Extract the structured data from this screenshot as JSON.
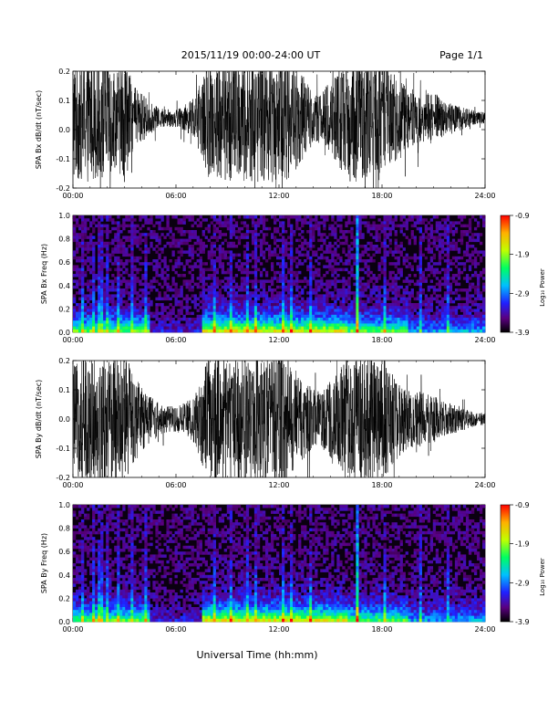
{
  "header": {
    "date_range": "2015/11/19  00:00-24:00 UT",
    "page": "Page 1/1"
  },
  "footer": {
    "xlabel": "Universal Time (hh:mm)"
  },
  "chart_data": [
    {
      "type": "line",
      "ylabel": "SPA Bx dB/dt (nT/sec)",
      "ylim": [
        -0.2,
        0.2
      ],
      "yticks": [
        "0.2",
        "0.1",
        "0.0",
        "-0.1",
        "-0.2"
      ],
      "xticks": [
        "00:00",
        "06:00",
        "12:00",
        "18:00",
        "24:00"
      ],
      "xlim_hours": [
        0,
        24
      ],
      "envelope": {
        "hours": [
          0,
          0.5,
          1,
          1.5,
          2,
          2.5,
          3,
          3.5,
          4,
          4.5,
          5,
          5.5,
          6,
          6.5,
          7,
          7.5,
          8,
          8.5,
          9,
          9.5,
          10,
          10.5,
          11,
          11.5,
          12,
          12.5,
          13,
          13.5,
          14,
          14.5,
          15,
          15.5,
          16,
          16.5,
          17,
          17.5,
          18,
          18.5,
          19,
          19.5,
          20,
          20.5,
          21,
          21.5,
          22,
          22.5,
          23,
          23.5,
          24
        ],
        "amplitude": [
          0.2,
          0.2,
          0.2,
          0.18,
          0.2,
          0.15,
          0.2,
          0.1,
          0.08,
          0.05,
          0.03,
          0.03,
          0.03,
          0.04,
          0.06,
          0.12,
          0.2,
          0.2,
          0.2,
          0.2,
          0.2,
          0.2,
          0.2,
          0.2,
          0.2,
          0.2,
          0.18,
          0.12,
          0.08,
          0.08,
          0.12,
          0.15,
          0.2,
          0.2,
          0.18,
          0.2,
          0.2,
          0.15,
          0.12,
          0.1,
          0.08,
          0.08,
          0.08,
          0.06,
          0.05,
          0.04,
          0.03,
          0.02,
          0.02
        ],
        "center": 0.04
      }
    },
    {
      "type": "heatmap",
      "ylabel": "SPA Bx Freq (Hz)",
      "ylim": [
        0,
        1.0
      ],
      "yticks": [
        "1.0",
        "0.8",
        "0.6",
        "0.4",
        "0.2",
        "0.0"
      ],
      "xticks": [
        "00:00",
        "06:00",
        "12:00",
        "18:00",
        "24:00"
      ],
      "colorbar": {
        "label": "Log₁₀ Power",
        "ticks": [
          "-0.9",
          "-1.9",
          "-2.9",
          "-3.9"
        ],
        "range": [
          -3.9,
          -0.9
        ]
      },
      "bright_lines_hours": [
        0.5,
        1.2,
        1.6,
        2.0,
        2.7,
        3.5,
        4.3,
        8.3,
        9.2,
        10.1,
        10.6,
        12.3,
        12.7,
        13.8,
        16.5,
        18.2,
        20.2,
        21.8
      ]
    },
    {
      "type": "line",
      "ylabel": "SPA By dB/dt (nT/sec)",
      "ylim": [
        -0.2,
        0.2
      ],
      "yticks": [
        "0.2",
        "0.1",
        "0.0",
        "-0.1",
        "-0.2"
      ],
      "xticks": [
        "00:00",
        "06:00",
        "12:00",
        "18:00",
        "24:00"
      ],
      "xlim_hours": [
        0,
        24
      ],
      "envelope": {
        "hours": [
          0,
          0.5,
          1,
          1.5,
          2,
          2.5,
          3,
          3.5,
          4,
          4.5,
          5,
          5.5,
          6,
          6.5,
          7,
          7.5,
          8,
          8.5,
          9,
          9.5,
          10,
          10.5,
          11,
          11.5,
          12,
          12.5,
          13,
          13.5,
          14,
          14.5,
          15,
          15.5,
          16,
          16.5,
          17,
          17.5,
          18,
          18.5,
          19,
          19.5,
          20,
          20.5,
          21,
          21.5,
          22,
          22.5,
          23,
          23.5,
          24
        ],
        "amplitude": [
          0.15,
          0.2,
          0.2,
          0.2,
          0.2,
          0.2,
          0.2,
          0.15,
          0.1,
          0.08,
          0.05,
          0.04,
          0.04,
          0.05,
          0.07,
          0.14,
          0.2,
          0.2,
          0.18,
          0.2,
          0.2,
          0.2,
          0.2,
          0.2,
          0.2,
          0.2,
          0.15,
          0.12,
          0.09,
          0.09,
          0.12,
          0.15,
          0.2,
          0.2,
          0.2,
          0.2,
          0.2,
          0.15,
          0.12,
          0.1,
          0.09,
          0.08,
          0.08,
          0.06,
          0.05,
          0.04,
          0.03,
          0.02,
          0.02
        ],
        "center": 0.0
      }
    },
    {
      "type": "heatmap",
      "ylabel": "SPA By Freq (Hz)",
      "ylim": [
        0,
        1.0
      ],
      "yticks": [
        "1.0",
        "0.8",
        "0.6",
        "0.4",
        "0.2",
        "0.0"
      ],
      "xticks": [
        "00:00",
        "06:00",
        "12:00",
        "18:00",
        "24:00"
      ],
      "colorbar": {
        "label": "Log₁₀ Power",
        "ticks": [
          "-0.9",
          "-1.9",
          "-2.9",
          "-3.9"
        ],
        "range": [
          -3.9,
          -0.9
        ]
      },
      "bright_lines_hours": [
        0.5,
        1.2,
        1.6,
        2.0,
        2.7,
        3.5,
        4.3,
        8.3,
        9.2,
        10.1,
        10.6,
        12.3,
        12.7,
        13.8,
        16.5,
        18.2,
        20.2,
        21.8
      ]
    }
  ]
}
